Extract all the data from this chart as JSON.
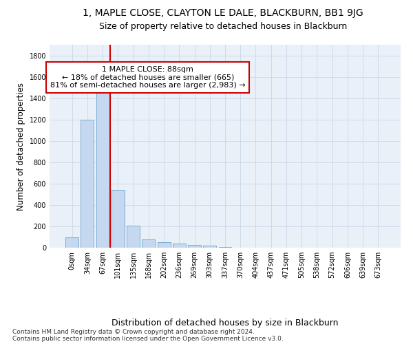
{
  "title_line1": "1, MAPLE CLOSE, CLAYTON LE DALE, BLACKBURN, BB1 9JG",
  "title_line2": "Size of property relative to detached houses in Blackburn",
  "xlabel": "Distribution of detached houses by size in Blackburn",
  "ylabel": "Number of detached properties",
  "bar_color": "#c5d8f0",
  "bar_edge_color": "#7aadd4",
  "grid_color": "#c8d8e8",
  "bg_color": "#eaf0f8",
  "categories": [
    "0sqm",
    "34sqm",
    "67sqm",
    "101sqm",
    "135sqm",
    "168sqm",
    "202sqm",
    "236sqm",
    "269sqm",
    "303sqm",
    "337sqm",
    "370sqm",
    "404sqm",
    "437sqm",
    "471sqm",
    "505sqm",
    "538sqm",
    "572sqm",
    "606sqm",
    "639sqm",
    "673sqm"
  ],
  "values": [
    95,
    1200,
    1460,
    540,
    205,
    75,
    50,
    40,
    28,
    18,
    5,
    0,
    0,
    0,
    0,
    0,
    0,
    0,
    0,
    0,
    0
  ],
  "ylim": [
    0,
    1900
  ],
  "yticks": [
    0,
    200,
    400,
    600,
    800,
    1000,
    1200,
    1400,
    1600,
    1800
  ],
  "annotation_text": "1 MAPLE CLOSE: 88sqm\n← 18% of detached houses are smaller (665)\n81% of semi-detached houses are larger (2,983) →",
  "annotation_box_color": "#ffffff",
  "annotation_box_edge": "#cc0000",
  "vline_color": "#cc0000",
  "vline_x": 2.5,
  "footnote": "Contains HM Land Registry data © Crown copyright and database right 2024.\nContains public sector information licensed under the Open Government Licence v3.0.",
  "title_fontsize": 10,
  "subtitle_fontsize": 9,
  "tick_fontsize": 7,
  "ylabel_fontsize": 8.5,
  "xlabel_fontsize": 9,
  "annot_fontsize": 8,
  "footnote_fontsize": 6.5
}
